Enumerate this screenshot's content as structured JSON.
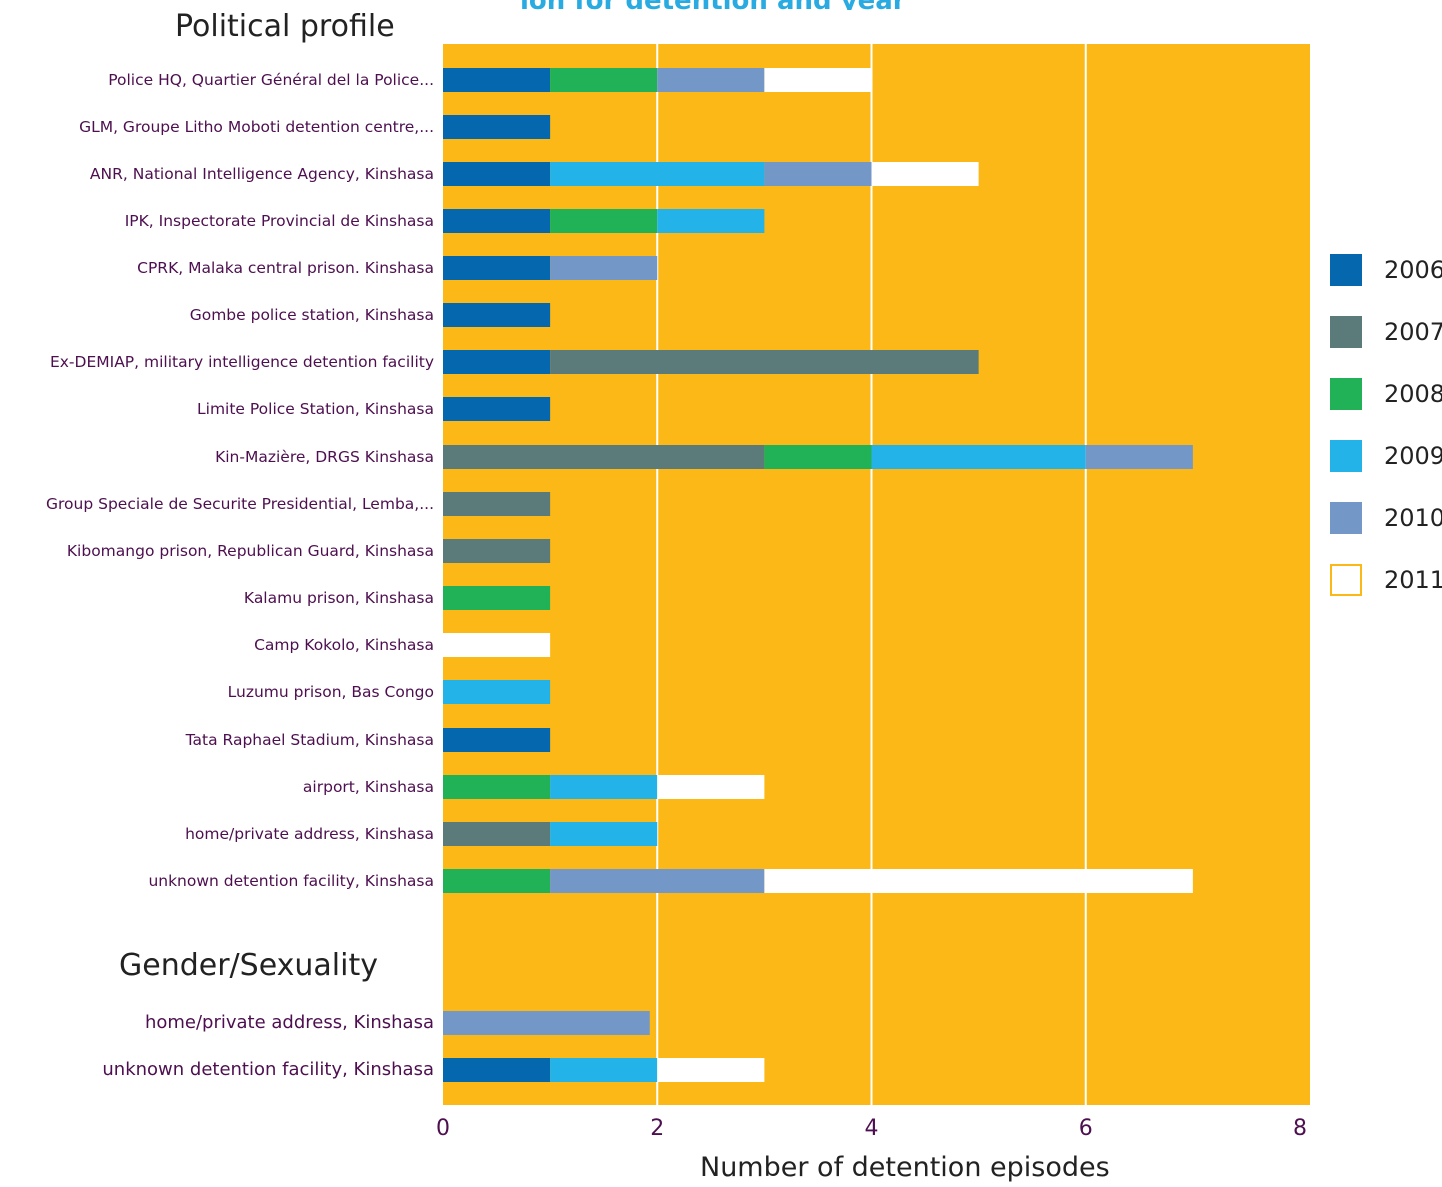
{
  "chart_data": {
    "type": "bar",
    "orientation": "horizontal",
    "stacked": true,
    "title": "ion for detention and year",
    "xlabel": "Number of detention episodes",
    "xlim": [
      0,
      8
    ],
    "xticks": [
      0,
      2,
      4,
      6,
      8
    ],
    "grid": true,
    "legend_position": "right",
    "plot_background": "#fbb817",
    "colors": {
      "2006": "#0567ae",
      "2007": "#5a7b7a",
      "2008": "#21b257",
      "2009": "#24b3e8",
      "2010": "#7398c8",
      "2011": "#ffffff"
    },
    "legend": [
      {
        "name": "2006",
        "color": "#0567ae"
      },
      {
        "name": "2007",
        "color": "#5a7b7a"
      },
      {
        "name": "2008",
        "color": "#21b257"
      },
      {
        "name": "2009",
        "color": "#24b3e8"
      },
      {
        "name": "2010",
        "color": "#7398c8"
      },
      {
        "name": "2011",
        "color": "#ffffff"
      }
    ],
    "groups": [
      {
        "name": "Political profile",
        "rows": [
          {
            "label": "Police HQ, Quartier Général del la Police...",
            "values": {
              "2006": 1,
              "2008": 1,
              "2010": 1,
              "2011": 1
            }
          },
          {
            "label": "GLM, Groupe Litho Moboti detention centre,...",
            "values": {
              "2006": 1
            }
          },
          {
            "label": "ANR, National Intelligence Agency, Kinshasa",
            "values": {
              "2006": 1,
              "2009": 2,
              "2010": 1,
              "2011": 1
            }
          },
          {
            "label": "IPK, Inspectorate Provincial de Kinshasa",
            "values": {
              "2006": 1,
              "2008": 1,
              "2009": 1
            }
          },
          {
            "label": "CPRK, Malaka central prison. Kinshasa",
            "values": {
              "2006": 1,
              "2010": 1
            }
          },
          {
            "label": "Gombe police station, Kinshasa",
            "values": {
              "2006": 1
            }
          },
          {
            "label": "Ex-DEMIAP, military intelligence detention facility",
            "values": {
              "2006": 1,
              "2007": 4
            }
          },
          {
            "label": "Limite Police Station, Kinshasa",
            "values": {
              "2006": 1
            }
          },
          {
            "label": "Kin-Mazière, DRGS Kinshasa",
            "values": {
              "2007": 3,
              "2008": 1,
              "2009": 2,
              "2010": 1
            }
          },
          {
            "label": "Group Speciale de Securite Presidential, Lemba,...",
            "values": {
              "2007": 1
            }
          },
          {
            "label": "Kibomango prison, Republican Guard, Kinshasa",
            "values": {
              "2007": 1
            }
          },
          {
            "label": "Kalamu prison, Kinshasa",
            "values": {
              "2008": 1
            }
          },
          {
            "label": "Camp Kokolo, Kinshasa",
            "values": {
              "2011": 1
            }
          },
          {
            "label": "Luzumu prison, Bas Congo",
            "values": {
              "2009": 1
            }
          },
          {
            "label": "Tata Raphael Stadium, Kinshasa",
            "values": {
              "2006": 1
            }
          },
          {
            "label": "airport, Kinshasa",
            "values": {
              "2009": 1,
              "2008": 1,
              "2011": 1
            }
          },
          {
            "label": "home/private address, Kinshasa",
            "values": {
              "2007": 1,
              "2009": 1
            }
          },
          {
            "label": "unknown detention facility, Kinshasa",
            "values": {
              "2008": 1,
              "2010": 2,
              "2011": 4
            }
          }
        ]
      },
      {
        "name": "Gender/Sexuality",
        "rows": [
          {
            "label": "home/private address, Kinshasa",
            "values": {
              "2010": 1.93
            }
          },
          {
            "label": "unknown detention facility, Kinshasa",
            "values": {
              "2006": 1,
              "2009": 1,
              "2011": 1
            }
          }
        ]
      }
    ]
  }
}
